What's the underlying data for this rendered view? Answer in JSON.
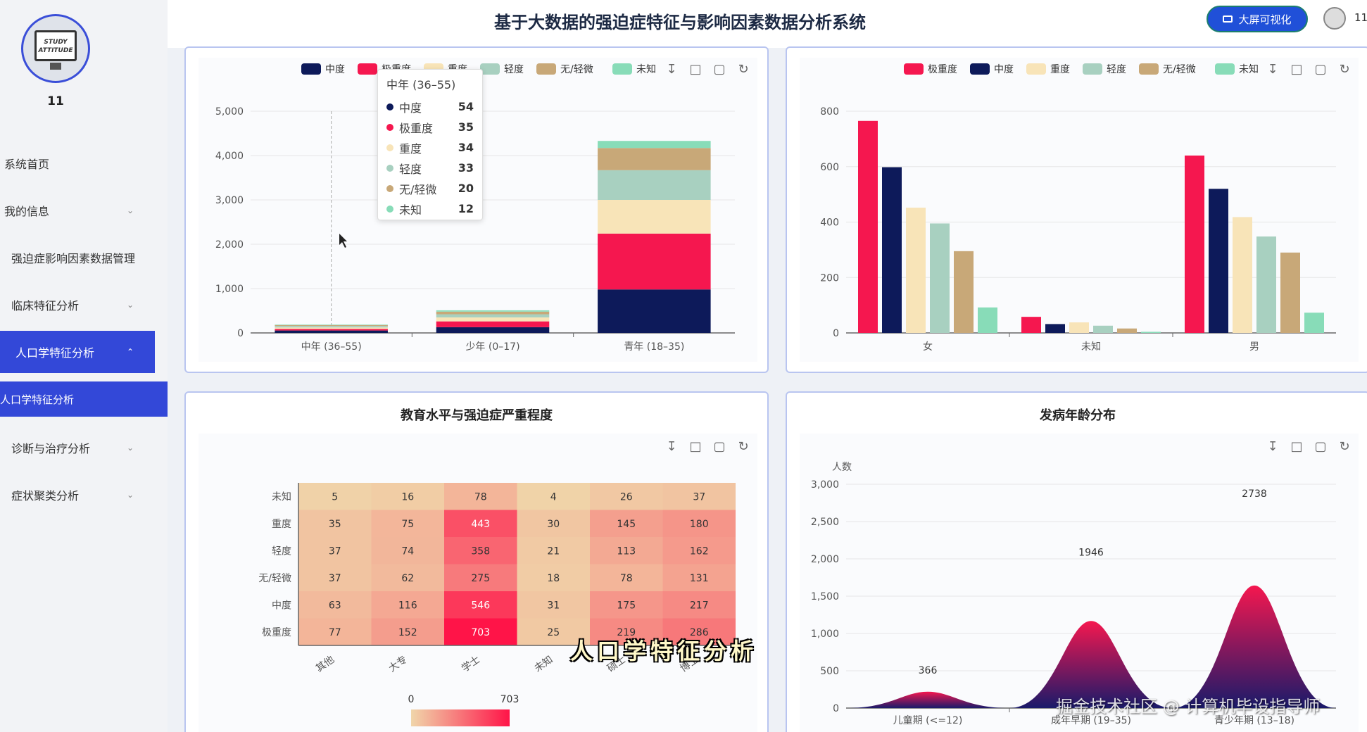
{
  "sidebar": {
    "username": "11",
    "avatar_text": "STUDY ATTITUDE",
    "items": [
      {
        "label": "系统首页",
        "chevron": false
      },
      {
        "label": "我的信息",
        "chevron": true
      },
      {
        "label": "强迫症影响因素数据管理",
        "chevron": false
      },
      {
        "label": "临床特征分析",
        "chevron": true
      },
      {
        "label": "人口学特征分析",
        "chevron": true,
        "active": true
      },
      {
        "label": "人口学特征分析",
        "sub": true
      },
      {
        "label": "诊断与治疗分析",
        "chevron": true
      },
      {
        "label": "症状聚类分析",
        "chevron": true
      }
    ]
  },
  "header": {
    "title": "基于大数据的强迫症特征与影响因素数据分析系统",
    "big_screen_label": "大屏可视化",
    "user": "11"
  },
  "colors": {
    "extreme": "#f5174f",
    "moderate": "#0d1a5a",
    "severe": "#f8e4b8",
    "mild": "#a8d0c0",
    "none": "#c8a878",
    "unknown": "#88dcb8"
  },
  "chart_data": [
    {
      "type": "bar",
      "stacked": true,
      "title": "",
      "categories": [
        "中年 (36–55)",
        "少年 (0–17)",
        "青年 (18–35)"
      ],
      "ylim": [
        0,
        5000
      ],
      "yticks": [
        "0",
        "1,000",
        "2,000",
        "3,000",
        "4,000",
        "5,000"
      ],
      "legend": [
        "中度",
        "极重度",
        "重度",
        "轻度",
        "无/轻微",
        "未知"
      ],
      "series": [
        {
          "name": "中度",
          "values": [
            54,
            130,
            980
          ]
        },
        {
          "name": "极重度",
          "values": [
            35,
            130,
            1260
          ]
        },
        {
          "name": "重度",
          "values": [
            34,
            90,
            760
          ]
        },
        {
          "name": "轻度",
          "values": [
            33,
            70,
            670
          ]
        },
        {
          "name": "无/轻微",
          "values": [
            20,
            60,
            500
          ]
        },
        {
          "name": "未知",
          "values": [
            12,
            30,
            160
          ]
        }
      ],
      "tooltip": {
        "title": "中年 (36–55)",
        "rows": [
          {
            "name": "中度",
            "value": "54"
          },
          {
            "name": "极重度",
            "value": "35"
          },
          {
            "name": "重度",
            "value": "34"
          },
          {
            "name": "轻度",
            "value": "33"
          },
          {
            "name": "无/轻微",
            "value": "20"
          },
          {
            "name": "未知",
            "value": "12"
          }
        ]
      }
    },
    {
      "type": "bar",
      "title": "",
      "categories": [
        "女",
        "未知",
        "男"
      ],
      "ylim": [
        0,
        800
      ],
      "yticks": [
        "0",
        "200",
        "400",
        "600",
        "800"
      ],
      "legend": [
        "极重度",
        "中度",
        "重度",
        "轻度",
        "无/轻微",
        "未知"
      ],
      "series": [
        {
          "name": "极重度",
          "values": [
            765,
            58,
            640
          ]
        },
        {
          "name": "中度",
          "values": [
            598,
            32,
            520
          ]
        },
        {
          "name": "重度",
          "values": [
            452,
            38,
            418
          ]
        },
        {
          "name": "轻度",
          "values": [
            395,
            26,
            348
          ]
        },
        {
          "name": "无/轻微",
          "values": [
            295,
            16,
            290
          ]
        },
        {
          "name": "未知",
          "values": [
            92,
            4,
            73
          ]
        }
      ]
    },
    {
      "type": "heatmap",
      "title": "教育水平与强迫症严重程度",
      "x": [
        "其他",
        "大专",
        "学士",
        "未知",
        "硕士",
        "博士"
      ],
      "y": [
        "未知",
        "重度",
        "轻度",
        "无/轻微",
        "中度",
        "极重度"
      ],
      "values": [
        [
          5,
          16,
          78,
          4,
          26,
          37
        ],
        [
          35,
          75,
          443,
          30,
          145,
          180
        ],
        [
          37,
          74,
          358,
          21,
          113,
          162
        ],
        [
          37,
          62,
          275,
          18,
          78,
          131
        ],
        [
          63,
          116,
          546,
          31,
          175,
          217
        ],
        [
          77,
          152,
          703,
          25,
          219,
          286
        ]
      ],
      "range": [
        0,
        703
      ],
      "range_labels": [
        "0",
        "703"
      ]
    },
    {
      "type": "area",
      "title": "发病年龄分布",
      "ylabel": "人数",
      "ylim": [
        0,
        3000
      ],
      "yticks": [
        "0",
        "500",
        "1,000",
        "1,500",
        "2,000",
        "2,500",
        "3,000"
      ],
      "categories": [
        "儿童期 (<=12)",
        "成年早期 (19–35)",
        "青少年期 (13–18)"
      ],
      "values": [
        366,
        1946,
        2738
      ],
      "value_labels": [
        "366",
        "1946",
        "2738"
      ]
    }
  ],
  "overlay": {
    "caption": "人口学特征分析",
    "watermark": "掘金技术社区 @ 计算机毕设指导师"
  }
}
